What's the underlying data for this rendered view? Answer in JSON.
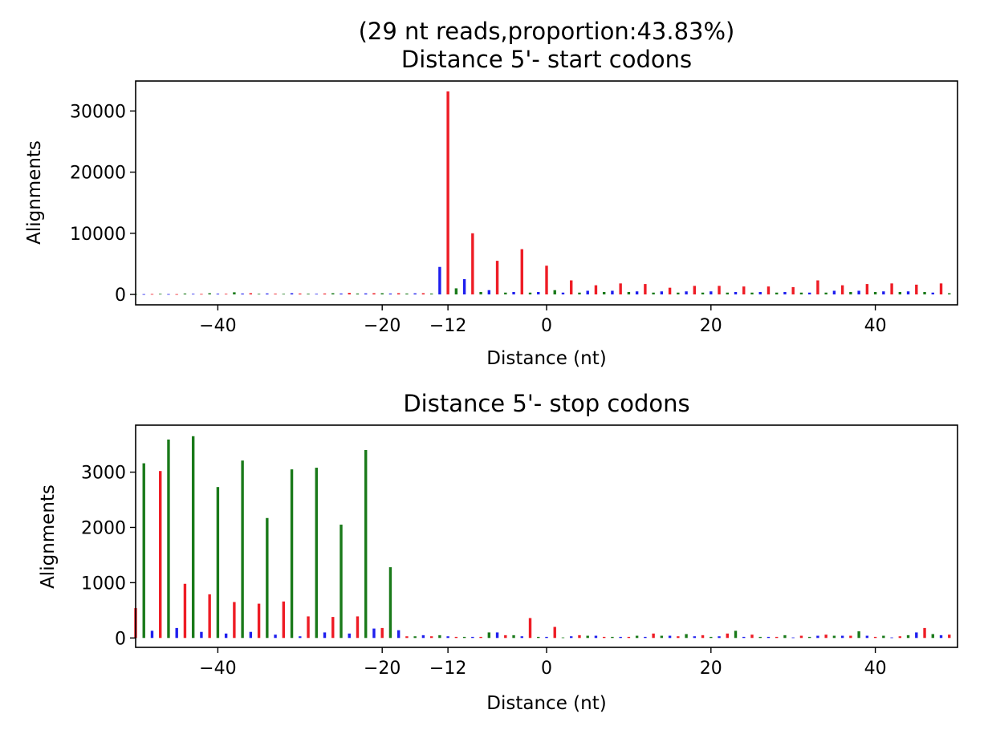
{
  "figure_title": "(29 nt reads,proportion:43.83%)",
  "colors": {
    "frame0": "#ee1c25",
    "frame1": "#1a7a1a",
    "frame2": "#1f1fee"
  },
  "chart_data": [
    {
      "type": "bar",
      "title": "Distance 5'- start codons",
      "xlabel": "Distance (nt)",
      "ylabel": "Alignments",
      "xlim": [
        -50,
        50
      ],
      "ylim": [
        -1700,
        34900
      ],
      "xticks": [
        -40,
        -20,
        -12,
        0,
        20,
        40
      ],
      "xtick_labels": [
        "−40",
        "−20",
        "−12",
        "0",
        "20",
        "40"
      ],
      "yticks": [
        0,
        10000,
        20000,
        30000
      ],
      "ytick_labels": [
        "0",
        "10000",
        "20000",
        "30000"
      ],
      "x": [
        -50,
        -49,
        -48,
        -47,
        -46,
        -45,
        -44,
        -43,
        -42,
        -41,
        -40,
        -39,
        -38,
        -37,
        -36,
        -35,
        -34,
        -33,
        -32,
        -31,
        -30,
        -29,
        -28,
        -27,
        -26,
        -25,
        -24,
        -23,
        -22,
        -21,
        -20,
        -19,
        -18,
        -17,
        -16,
        -15,
        -14,
        -13,
        -12,
        -11,
        -10,
        -9,
        -8,
        -7,
        -6,
        -5,
        -4,
        -3,
        -2,
        -1,
        0,
        1,
        2,
        3,
        4,
        5,
        6,
        7,
        8,
        9,
        10,
        11,
        12,
        13,
        14,
        15,
        16,
        17,
        18,
        19,
        20,
        21,
        22,
        23,
        24,
        25,
        26,
        27,
        28,
        29,
        30,
        31,
        32,
        33,
        34,
        35,
        36,
        37,
        38,
        39,
        40,
        41,
        42,
        43,
        44,
        45,
        46,
        47,
        48,
        49
      ],
      "values": [
        60,
        50,
        70,
        100,
        60,
        50,
        150,
        100,
        80,
        200,
        120,
        100,
        350,
        150,
        200,
        100,
        160,
        120,
        100,
        200,
        150,
        120,
        100,
        150,
        200,
        150,
        250,
        150,
        170,
        200,
        200,
        150,
        200,
        150,
        180,
        200,
        150,
        4500,
        33200,
        1000,
        2500,
        10000,
        400,
        700,
        5500,
        300,
        400,
        7400,
        300,
        400,
        4700,
        700,
        300,
        2300,
        300,
        600,
        1500,
        400,
        600,
        1800,
        400,
        500,
        1700,
        300,
        500,
        1100,
        300,
        500,
        1400,
        300,
        500,
        1400,
        300,
        400,
        1300,
        300,
        400,
        1300,
        300,
        400,
        1200,
        300,
        300,
        2300,
        300,
        600,
        1500,
        400,
        600,
        1700,
        400,
        500,
        1800,
        400,
        500,
        1600,
        400,
        300,
        1800,
        200
      ],
      "frame_colors": [
        "frame0",
        "frame1",
        "frame2"
      ],
      "frame_of_first": 1
    },
    {
      "type": "bar",
      "title": "Distance 5'- stop codons",
      "xlabel": "Distance (nt)",
      "ylabel": "Alignments",
      "xlim": [
        -50,
        50
      ],
      "ylim": [
        -170,
        3850
      ],
      "xticks": [
        -40,
        -20,
        -12,
        0,
        20,
        40
      ],
      "xtick_labels": [
        "−40",
        "−20",
        "−12",
        "0",
        "20",
        "40"
      ],
      "yticks": [
        0,
        1000,
        2000,
        3000
      ],
      "ytick_labels": [
        "0",
        "1000",
        "2000",
        "3000"
      ],
      "x": [
        -50,
        -49,
        -48,
        -47,
        -46,
        -45,
        -44,
        -43,
        -42,
        -41,
        -40,
        -39,
        -38,
        -37,
        -36,
        -35,
        -34,
        -33,
        -32,
        -31,
        -30,
        -29,
        -28,
        -27,
        -26,
        -25,
        -24,
        -23,
        -22,
        -21,
        -20,
        -19,
        -18,
        -17,
        -16,
        -15,
        -14,
        -13,
        -12,
        -11,
        -10,
        -9,
        -8,
        -7,
        -6,
        -5,
        -4,
        -3,
        -2,
        -1,
        0,
        1,
        2,
        3,
        4,
        5,
        6,
        7,
        8,
        9,
        10,
        11,
        12,
        13,
        14,
        15,
        16,
        17,
        18,
        19,
        20,
        21,
        22,
        23,
        24,
        25,
        26,
        27,
        28,
        29,
        30,
        31,
        32,
        33,
        34,
        35,
        36,
        37,
        38,
        39,
        40,
        41,
        42,
        43,
        44,
        45,
        46,
        47,
        48,
        49
      ],
      "values": [
        540,
        3160,
        130,
        3020,
        3590,
        180,
        980,
        3650,
        110,
        790,
        2730,
        80,
        650,
        3210,
        110,
        620,
        2170,
        60,
        660,
        3050,
        30,
        390,
        3080,
        100,
        380,
        2050,
        80,
        390,
        3400,
        170,
        180,
        1280,
        140,
        30,
        30,
        50,
        30,
        50,
        30,
        20,
        20,
        20,
        20,
        100,
        100,
        50,
        50,
        30,
        360,
        20,
        20,
        200,
        10,
        30,
        50,
        40,
        40,
        20,
        20,
        20,
        20,
        40,
        20,
        80,
        40,
        40,
        30,
        70,
        30,
        50,
        20,
        30,
        80,
        130,
        20,
        60,
        20,
        20,
        20,
        50,
        10,
        40,
        20,
        40,
        60,
        40,
        40,
        40,
        120,
        40,
        20,
        40,
        10,
        30,
        50,
        100,
        180,
        70,
        50,
        60
      ]
    }
  ]
}
